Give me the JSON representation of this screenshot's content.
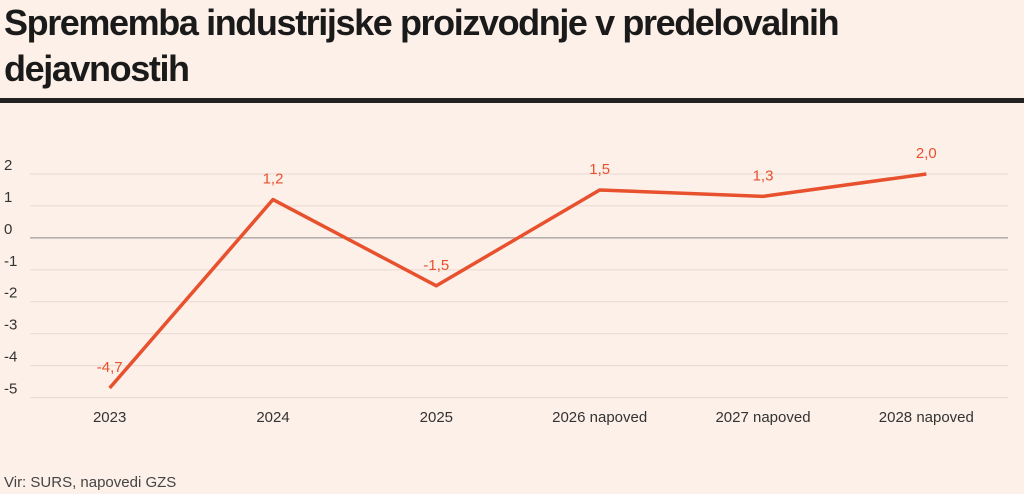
{
  "chart_data": {
    "type": "line",
    "title": "Sprememba industrijske proizvodnje v predelovalnih dejavnostih",
    "categories": [
      "2023",
      "2024",
      "2025",
      "2026 napoved",
      "2027 napoved",
      "2028 napoved"
    ],
    "values": [
      -4.7,
      1.2,
      -1.5,
      1.5,
      1.3,
      2.0
    ],
    "value_labels": [
      "-4,7",
      "1,2",
      "-1,5",
      "1,5",
      "1,3",
      "2,0"
    ],
    "color": "#e8512e",
    "ylim": [
      -5.2,
      2.5
    ],
    "yticks": [
      2,
      1,
      0,
      -1,
      -2,
      -3,
      -4,
      -5
    ],
    "grid": true,
    "source": "Vir: SURS, napovedi GZS"
  }
}
